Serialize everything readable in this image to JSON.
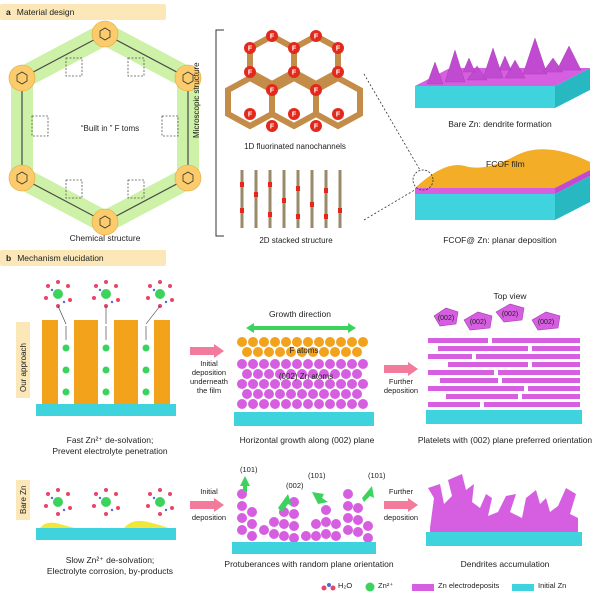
{
  "panel_a": {
    "letter": "a",
    "title": "Material design",
    "built_in_label": "“Built in ” F toms",
    "chemical_structure": "Chemical structure",
    "microscopic_structure": "Microscopic structure",
    "nanochannels": "1D fluorinated nanochannels",
    "stacked": "2D stacked structure",
    "bare_zn": "Bare Zn: dendrite formation",
    "fcof_film": "FCOF film",
    "fcof_zn": "FCOF@ Zn: planar deposition",
    "f_symbol": "F"
  },
  "panel_b": {
    "letter": "b",
    "title": "Mechanism elucidation",
    "our_approach": "Our approach",
    "bare_zn": "Bare Zn",
    "fast_line1": "Fast Zn²⁺ de-solvation;",
    "fast_line2": "Prevent electrolyte penetration",
    "initial_dep_top": [
      "Initial",
      "deposition",
      "underneath",
      "the film"
    ],
    "growth_direction": "Growth direction",
    "f_atoms": "F atoms",
    "zn_atoms": "(002) Zn atoms",
    "horizontal": "Horizontal growth along (002) plane",
    "further_top": [
      "Further",
      "deposition"
    ],
    "top_view": "Top view",
    "facet_label": "(002)",
    "platelets": "Platelets with (002) plane preferred orientation",
    "slow_line1": "Slow Zn²⁺ de-solvation;",
    "slow_line2": "Electrolyte corrosion, by-products",
    "initial_dep_bottom": [
      "Initial",
      "deposition"
    ],
    "plane_101": "(101)",
    "plane_002": "(002)",
    "protuberances": "Protuberances with random plane orientation",
    "further_bottom": [
      "Further",
      "deposition"
    ],
    "dendrites": "Dendrites accumulation"
  },
  "legend": {
    "h2o": "H₂O",
    "zn2": "Zn²⁺",
    "zn_electrodeposits": "Zn electrodeposits",
    "initial_zn": "Initial Zn"
  },
  "colors": {
    "header_bg": "#fbe7b8",
    "zinc": "#3fd3dd",
    "zn_deposit": "#d65ee0",
    "fcof_orange": "#f2a21b",
    "fluorine_red": "#e3291c",
    "arrow_pink": "#f27a9a",
    "arrow_green": "#3bd35e"
  }
}
